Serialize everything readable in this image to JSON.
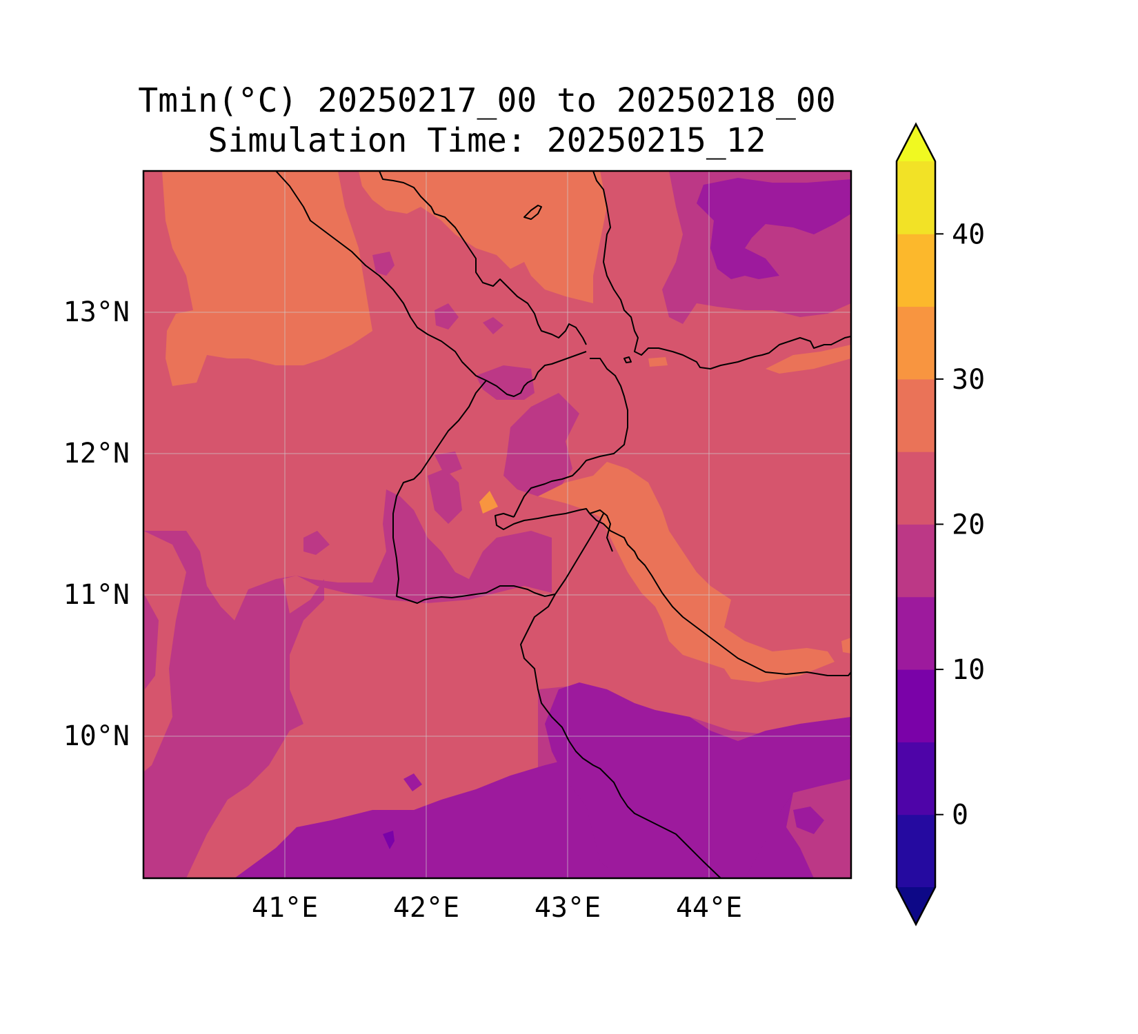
{
  "title": "Tmin(°C) 20250217_00 to 20250218_00",
  "subtitle": "Simulation Time: 20250215_12",
  "map": {
    "lon_range": [
      40.0,
      45.0
    ],
    "lat_range": [
      9.0,
      14.0
    ],
    "lon_ticks": [
      {
        "value": 41,
        "label": "41°E"
      },
      {
        "value": 42,
        "label": "42°E"
      },
      {
        "value": 43,
        "label": "43°E"
      },
      {
        "value": 44,
        "label": "44°E"
      }
    ],
    "lat_ticks": [
      {
        "value": 13,
        "label": "13°N"
      },
      {
        "value": 12,
        "label": "12°N"
      },
      {
        "value": 11,
        "label": "11°N"
      },
      {
        "value": 10,
        "label": "10°N"
      }
    ],
    "gridlines": true
  },
  "colorbar": {
    "min": -5,
    "max": 45,
    "extend": "both",
    "colormap": "plasma",
    "levels": [
      -5,
      0,
      5,
      10,
      15,
      20,
      25,
      30,
      35,
      40,
      45
    ],
    "colors": [
      "#250aa0",
      "#4e04a8",
      "#7a02a8",
      "#9d1a9d",
      "#bc3886",
      "#d6556d",
      "#ea7358",
      "#f89540",
      "#fcb82c",
      "#f2e226"
    ],
    "under_color": "#0d0887",
    "over_color": "#f0f921",
    "ticks": [
      {
        "value": 0,
        "label": "0"
      },
      {
        "value": 10,
        "label": "10"
      },
      {
        "value": 20,
        "label": "20"
      },
      {
        "value": 30,
        "label": "30"
      },
      {
        "value": 40,
        "label": "40"
      }
    ]
  }
}
